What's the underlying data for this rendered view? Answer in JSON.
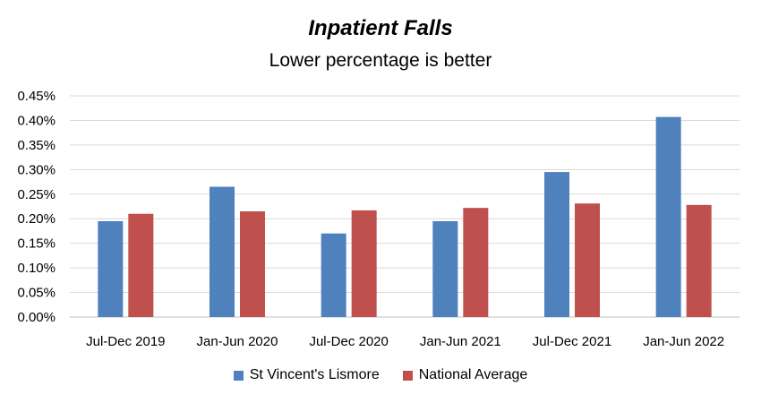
{
  "chart_data": {
    "type": "bar",
    "title": "Inpatient Falls",
    "subtitle": "Lower percentage is better",
    "categories": [
      "Jul-Dec 2019",
      "Jan-Jun 2020",
      "Jul-Dec 2020",
      "Jan-Jun 2021",
      "Jul-Dec 2021",
      "Jan-Jun 2022"
    ],
    "series": [
      {
        "name": "St Vincent's Lismore",
        "color": "#4f81bd",
        "values": [
          0.195,
          0.265,
          0.17,
          0.195,
          0.295,
          0.407
        ]
      },
      {
        "name": "National Average",
        "color": "#c0504d",
        "values": [
          0.21,
          0.215,
          0.217,
          0.222,
          0.231,
          0.228
        ]
      }
    ],
    "yticks": [
      "0.00%",
      "0.05%",
      "0.10%",
      "0.15%",
      "0.20%",
      "0.25%",
      "0.30%",
      "0.35%",
      "0.40%",
      "0.45%"
    ],
    "ylim": [
      0,
      0.45
    ],
    "grid": true,
    "legend_position": "bottom"
  }
}
